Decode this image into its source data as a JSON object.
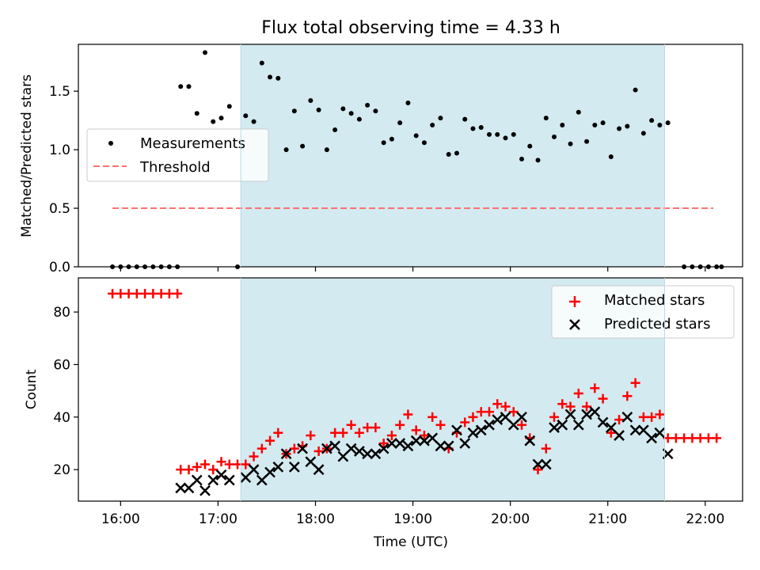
{
  "chart_data": [
    {
      "type": "scatter",
      "title": "Flux total observing time = 4.33 h",
      "ylabel": "Matched/Predicted stars",
      "xlim": [
        "15:34",
        "22:23"
      ],
      "ylim": [
        0,
        1.9
      ],
      "yticks": [
        "0.0",
        "0.5",
        "1.0",
        "1.5"
      ],
      "shaded_region": [
        "17:14",
        "21:35"
      ],
      "grid": false,
      "legend": {
        "location": "center-left",
        "entries": [
          "Measurements",
          "Threshold"
        ]
      },
      "series": [
        {
          "name": "Measurements",
          "marker": "dot",
          "color": "#000000",
          "points": [
            [
              "15:55",
              0
            ],
            [
              "16:00",
              0
            ],
            [
              "16:05",
              0
            ],
            [
              "16:10",
              0
            ],
            [
              "16:15",
              0
            ],
            [
              "16:20",
              0
            ],
            [
              "16:25",
              0
            ],
            [
              "16:30",
              0
            ],
            [
              "16:35",
              0
            ],
            [
              "16:37",
              1.54
            ],
            [
              "16:42",
              1.54
            ],
            [
              "16:47",
              1.31
            ],
            [
              "16:52",
              1.83
            ],
            [
              "16:57",
              1.24
            ],
            [
              "17:02",
              1.27
            ],
            [
              "17:07",
              1.37
            ],
            [
              "17:12",
              0
            ],
            [
              "17:17",
              1.29
            ],
            [
              "17:22",
              1.24
            ],
            [
              "17:27",
              1.74
            ],
            [
              "17:32",
              1.62
            ],
            [
              "17:37",
              1.61
            ],
            [
              "17:42",
              1.0
            ],
            [
              "17:47",
              1.33
            ],
            [
              "17:52",
              1.03
            ],
            [
              "17:57",
              1.42
            ],
            [
              "18:02",
              1.34
            ],
            [
              "18:07",
              1.0
            ],
            [
              "18:12",
              1.17
            ],
            [
              "18:17",
              1.35
            ],
            [
              "18:22",
              1.31
            ],
            [
              "18:27",
              1.26
            ],
            [
              "18:32",
              1.38
            ],
            [
              "18:37",
              1.33
            ],
            [
              "18:42",
              1.06
            ],
            [
              "18:47",
              1.09
            ],
            [
              "18:52",
              1.23
            ],
            [
              "18:57",
              1.4
            ],
            [
              "19:02",
              1.12
            ],
            [
              "19:07",
              1.06
            ],
            [
              "19:12",
              1.21
            ],
            [
              "19:17",
              1.27
            ],
            [
              "19:22",
              0.96
            ],
            [
              "19:27",
              0.97
            ],
            [
              "19:32",
              1.26
            ],
            [
              "19:37",
              1.18
            ],
            [
              "19:42",
              1.19
            ],
            [
              "19:47",
              1.13
            ],
            [
              "19:52",
              1.13
            ],
            [
              "19:57",
              1.1
            ],
            [
              "20:02",
              1.13
            ],
            [
              "20:07",
              0.92
            ],
            [
              "20:12",
              1.03
            ],
            [
              "20:17",
              0.91
            ],
            [
              "20:22",
              1.27
            ],
            [
              "20:27",
              1.11
            ],
            [
              "20:32",
              1.21
            ],
            [
              "20:37",
              1.05
            ],
            [
              "20:42",
              1.32
            ],
            [
              "20:47",
              1.07
            ],
            [
              "20:52",
              1.21
            ],
            [
              "20:57",
              1.23
            ],
            [
              "21:02",
              0.94
            ],
            [
              "21:07",
              1.18
            ],
            [
              "21:12",
              1.2
            ],
            [
              "21:17",
              1.51
            ],
            [
              "21:22",
              1.14
            ],
            [
              "21:27",
              1.25
            ],
            [
              "21:32",
              1.21
            ],
            [
              "21:37",
              1.23
            ],
            [
              "21:47",
              0
            ],
            [
              "21:52",
              0
            ],
            [
              "21:57",
              0
            ],
            [
              "22:02",
              0
            ],
            [
              "22:07",
              0
            ],
            [
              "22:10",
              0
            ]
          ]
        },
        {
          "name": "Threshold",
          "style": "dashed",
          "color": "#ff7070",
          "points": [
            [
              "15:55",
              0.5
            ],
            [
              "22:05",
              0.5
            ]
          ]
        }
      ]
    },
    {
      "type": "scatter",
      "xlabel": "Time (UTC)",
      "ylabel": "Count",
      "xlim": [
        "15:34",
        "22:23"
      ],
      "ylim": [
        8,
        93
      ],
      "yticks": [
        "20",
        "40",
        "60",
        "80"
      ],
      "xticks": [
        "16:00",
        "17:00",
        "18:00",
        "19:00",
        "20:00",
        "21:00",
        "22:00"
      ],
      "shaded_region": [
        "17:14",
        "21:35"
      ],
      "grid": false,
      "legend": {
        "location": "top-right",
        "entries": [
          "Matched stars",
          "Predicted stars"
        ]
      },
      "series": [
        {
          "name": "Matched stars",
          "marker": "plus",
          "color": "#ff0000",
          "points": [
            [
              "15:55",
              87
            ],
            [
              "16:00",
              87
            ],
            [
              "16:05",
              87
            ],
            [
              "16:10",
              87
            ],
            [
              "16:15",
              87
            ],
            [
              "16:20",
              87
            ],
            [
              "16:25",
              87
            ],
            [
              "16:30",
              87
            ],
            [
              "16:35",
              87
            ],
            [
              "16:37",
              20
            ],
            [
              "16:42",
              20
            ],
            [
              "16:47",
              21
            ],
            [
              "16:52",
              22
            ],
            [
              "16:57",
              20
            ],
            [
              "17:02",
              23
            ],
            [
              "17:07",
              22
            ],
            [
              "17:12",
              22
            ],
            [
              "17:17",
              22
            ],
            [
              "17:22",
              25
            ],
            [
              "17:27",
              28
            ],
            [
              "17:32",
              31
            ],
            [
              "17:37",
              34
            ],
            [
              "17:42",
              26
            ],
            [
              "17:47",
              28
            ],
            [
              "17:52",
              29
            ],
            [
              "17:57",
              33
            ],
            [
              "18:02",
              27
            ],
            [
              "18:07",
              28
            ],
            [
              "18:12",
              34
            ],
            [
              "18:17",
              34
            ],
            [
              "18:22",
              37
            ],
            [
              "18:27",
              34
            ],
            [
              "18:32",
              36
            ],
            [
              "18:37",
              36
            ],
            [
              "18:42",
              30
            ],
            [
              "18:47",
              33
            ],
            [
              "18:52",
              37
            ],
            [
              "18:57",
              41
            ],
            [
              "19:02",
              35
            ],
            [
              "19:07",
              33
            ],
            [
              "19:12",
              40
            ],
            [
              "19:17",
              37
            ],
            [
              "19:22",
              28
            ],
            [
              "19:27",
              34
            ],
            [
              "19:32",
              38
            ],
            [
              "19:37",
              40
            ],
            [
              "19:42",
              42
            ],
            [
              "19:47",
              42
            ],
            [
              "19:52",
              45
            ],
            [
              "19:57",
              44
            ],
            [
              "20:02",
              42
            ],
            [
              "20:07",
              37
            ],
            [
              "20:12",
              32
            ],
            [
              "20:17",
              20
            ],
            [
              "20:22",
              28
            ],
            [
              "20:27",
              40
            ],
            [
              "20:32",
              45
            ],
            [
              "20:37",
              44
            ],
            [
              "20:42",
              49
            ],
            [
              "20:47",
              44
            ],
            [
              "20:52",
              51
            ],
            [
              "20:57",
              47
            ],
            [
              "21:02",
              34
            ],
            [
              "21:07",
              39
            ],
            [
              "21:12",
              48
            ],
            [
              "21:17",
              53
            ],
            [
              "21:22",
              40
            ],
            [
              "21:27",
              40
            ],
            [
              "21:32",
              41
            ],
            [
              "21:37",
              32
            ],
            [
              "21:42",
              32
            ],
            [
              "21:47",
              32
            ],
            [
              "21:52",
              32
            ],
            [
              "21:57",
              32
            ],
            [
              "22:02",
              32
            ],
            [
              "22:07",
              32
            ]
          ]
        },
        {
          "name": "Predicted stars",
          "marker": "x",
          "color": "#000000",
          "points": [
            [
              "16:37",
              13
            ],
            [
              "16:42",
              13
            ],
            [
              "16:47",
              16
            ],
            [
              "16:52",
              12
            ],
            [
              "16:57",
              16
            ],
            [
              "17:02",
              18
            ],
            [
              "17:07",
              16
            ],
            [
              "17:17",
              17
            ],
            [
              "17:22",
              20
            ],
            [
              "17:27",
              16
            ],
            [
              "17:32",
              19
            ],
            [
              "17:37",
              21
            ],
            [
              "17:42",
              26
            ],
            [
              "17:47",
              21
            ],
            [
              "17:52",
              28
            ],
            [
              "17:57",
              23
            ],
            [
              "18:02",
              20
            ],
            [
              "18:07",
              28
            ],
            [
              "18:12",
              29
            ],
            [
              "18:17",
              25
            ],
            [
              "18:22",
              28
            ],
            [
              "18:27",
              27
            ],
            [
              "18:32",
              26
            ],
            [
              "18:37",
              26
            ],
            [
              "18:42",
              28
            ],
            [
              "18:47",
              30
            ],
            [
              "18:52",
              30
            ],
            [
              "18:57",
              29
            ],
            [
              "19:02",
              31
            ],
            [
              "19:07",
              31
            ],
            [
              "19:12",
              32
            ],
            [
              "19:17",
              29
            ],
            [
              "19:22",
              29
            ],
            [
              "19:27",
              35
            ],
            [
              "19:32",
              30
            ],
            [
              "19:37",
              34
            ],
            [
              "19:42",
              35
            ],
            [
              "19:47",
              37
            ],
            [
              "19:52",
              39
            ],
            [
              "19:57",
              40
            ],
            [
              "20:02",
              37
            ],
            [
              "20:07",
              40
            ],
            [
              "20:12",
              31
            ],
            [
              "20:17",
              22
            ],
            [
              "20:22",
              22
            ],
            [
              "20:27",
              36
            ],
            [
              "20:32",
              37
            ],
            [
              "20:37",
              41
            ],
            [
              "20:42",
              37
            ],
            [
              "20:47",
              41
            ],
            [
              "20:52",
              42
            ],
            [
              "20:57",
              38
            ],
            [
              "21:02",
              36
            ],
            [
              "21:07",
              33
            ],
            [
              "21:12",
              40
            ],
            [
              "21:17",
              35
            ],
            [
              "21:22",
              35
            ],
            [
              "21:27",
              32
            ],
            [
              "21:32",
              34
            ],
            [
              "21:37",
              26
            ]
          ]
        }
      ]
    }
  ]
}
